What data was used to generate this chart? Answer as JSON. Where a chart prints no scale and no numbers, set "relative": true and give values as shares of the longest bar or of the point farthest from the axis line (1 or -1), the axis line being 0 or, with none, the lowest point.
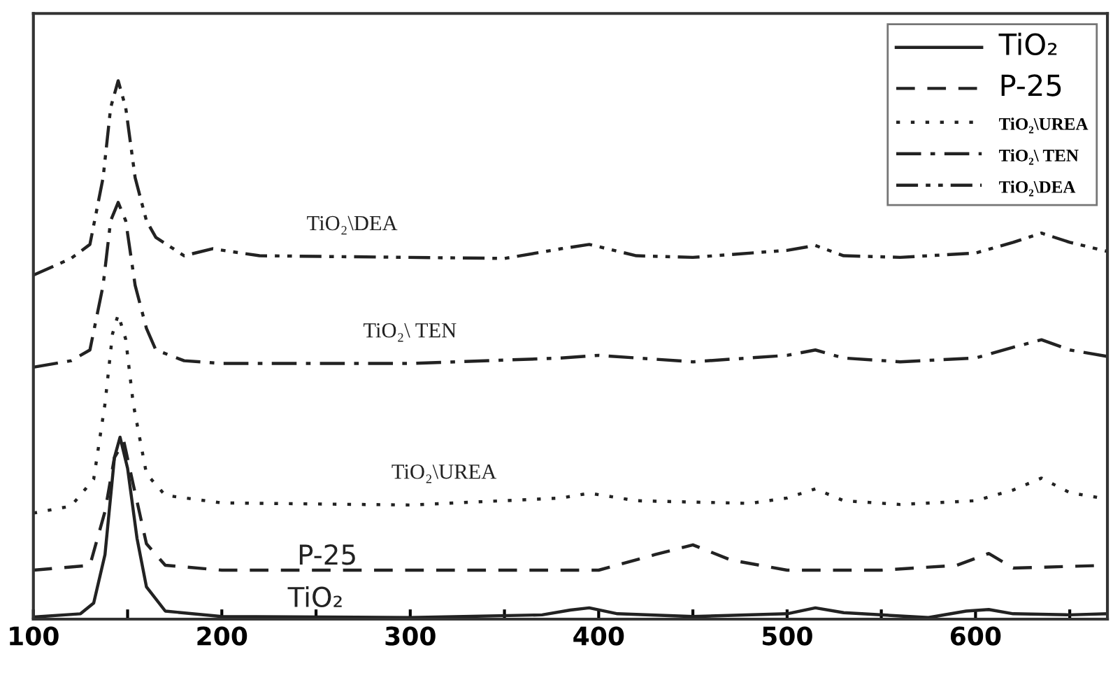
{
  "chart_data": {
    "type": "line",
    "relative": true,
    "legend": "top right",
    "grid": false,
    "tick_labels": "x",
    "marker": "none",
    "xlim": [
      100,
      670
    ],
    "xticks": [
      100,
      {
        "value": 150,
        "label": null
      },
      200,
      {
        "value": 250,
        "label": null
      },
      300,
      {
        "value": 350,
        "label": null
      },
      400,
      {
        "value": 450,
        "label": null
      },
      500,
      {
        "value": 550,
        "label": null
      },
      600,
      {
        "value": 650,
        "label": null
      }
    ],
    "series": [
      {
        "name": "TiO₂",
        "color": "#222222",
        "line_style": "solid",
        "x": [
          100,
          125,
          132,
          138,
          143,
          146,
          150,
          155,
          160,
          170,
          200,
          300,
          370,
          385,
          395,
          410,
          450,
          500,
          515,
          530,
          575,
          595,
          607,
          620,
          650,
          670
        ],
        "values": [
          0.004,
          0.01,
          0.03,
          0.12,
          0.3,
          0.338,
          0.28,
          0.15,
          0.06,
          0.015,
          0.005,
          0.003,
          0.008,
          0.017,
          0.021,
          0.01,
          0.005,
          0.01,
          0.021,
          0.012,
          0.003,
          0.015,
          0.018,
          0.01,
          0.008,
          0.01
        ]
      },
      {
        "name": "P-25",
        "color": "#222222",
        "line_style": "dashed",
        "x": [
          100,
          130,
          138,
          143,
          148,
          153,
          160,
          170,
          200,
          300,
          400,
          430,
          450,
          470,
          500,
          550,
          590,
          607,
          620,
          670
        ],
        "values": [
          0.091,
          0.1,
          0.2,
          0.3,
          0.33,
          0.25,
          0.14,
          0.1,
          0.091,
          0.091,
          0.091,
          0.12,
          0.138,
          0.11,
          0.091,
          0.091,
          0.1,
          0.122,
          0.095,
          0.1
        ]
      },
      {
        "name": "TiO₂\\UREA",
        "color": "#222222",
        "line_style": "dotted",
        "x": [
          100,
          120,
          132,
          138,
          142,
          145,
          149,
          153,
          160,
          170,
          200,
          300,
          380,
          395,
          420,
          480,
          500,
          515,
          530,
          560,
          600,
          620,
          635,
          650,
          670
        ],
        "values": [
          0.197,
          0.21,
          0.26,
          0.4,
          0.53,
          0.566,
          0.52,
          0.4,
          0.27,
          0.23,
          0.216,
          0.212,
          0.225,
          0.234,
          0.22,
          0.215,
          0.225,
          0.242,
          0.22,
          0.213,
          0.22,
          0.24,
          0.262,
          0.235,
          0.223
        ]
      },
      {
        "name": "TiO₂\\ TEN",
        "color": "#222222",
        "line_style": "dashdot",
        "x": [
          100,
          120,
          130,
          137,
          141,
          145,
          149,
          154,
          160,
          165,
          180,
          200,
          300,
          380,
          400,
          450,
          500,
          515,
          530,
          560,
          600,
          620,
          635,
          650,
          670
        ],
        "values": [
          0.468,
          0.48,
          0.5,
          0.62,
          0.74,
          0.774,
          0.74,
          0.62,
          0.54,
          0.5,
          0.48,
          0.475,
          0.475,
          0.485,
          0.49,
          0.478,
          0.49,
          0.5,
          0.485,
          0.478,
          0.485,
          0.505,
          0.519,
          0.5,
          0.488
        ]
      },
      {
        "name": "TiO₂\\DEA",
        "color": "#222222",
        "line_style": "dashdotdot",
        "x": [
          100,
          120,
          130,
          137,
          141,
          145,
          149,
          154,
          160,
          165,
          180,
          195,
          220,
          350,
          380,
          395,
          420,
          450,
          500,
          515,
          530,
          560,
          600,
          620,
          635,
          650,
          670
        ],
        "values": [
          0.639,
          0.67,
          0.696,
          0.82,
          0.95,
          1.0,
          0.95,
          0.82,
          0.74,
          0.709,
          0.675,
          0.688,
          0.675,
          0.67,
          0.688,
          0.696,
          0.675,
          0.672,
          0.685,
          0.694,
          0.675,
          0.672,
          0.68,
          0.7,
          0.717,
          0.7,
          0.683
        ]
      }
    ]
  }
}
